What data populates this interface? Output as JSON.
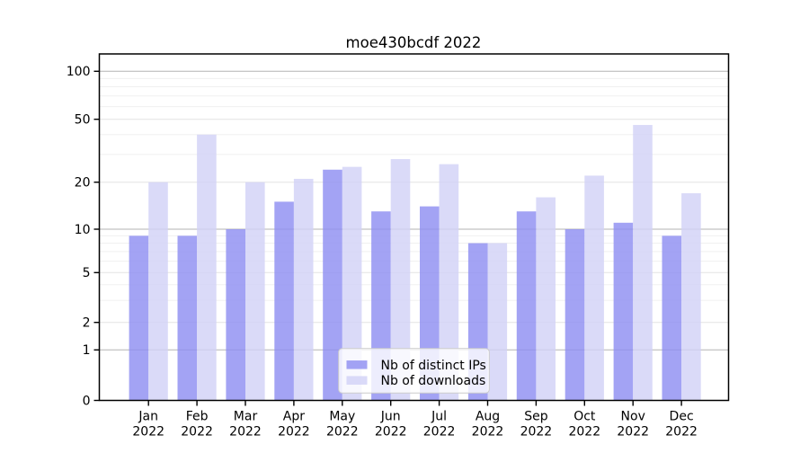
{
  "chart_data": {
    "type": "bar",
    "title": "moe430bcdf 2022",
    "categories": [
      "Jan",
      "Feb",
      "Mar",
      "Apr",
      "May",
      "Jun",
      "Jul",
      "Aug",
      "Sep",
      "Oct",
      "Nov",
      "Dec"
    ],
    "year_label": "2022",
    "series": [
      {
        "name": "Nb of distinct IPs",
        "color": "#8f8ff1",
        "values": [
          9,
          9,
          10,
          15,
          24,
          13,
          14,
          8,
          13,
          10,
          11,
          9
        ]
      },
      {
        "name": "Nb of downloads",
        "color": "#d2d2f7",
        "values": [
          20,
          40,
          20,
          21,
          25,
          28,
          26,
          8,
          16,
          22,
          46,
          17
        ]
      }
    ],
    "y_axis": {
      "scale": "log-like",
      "ticks": [
        100,
        50,
        20,
        10,
        5,
        2,
        1,
        0
      ],
      "range": [
        0,
        120
      ]
    },
    "x_axis": {
      "tick_line1": [
        "Jan",
        "Feb",
        "Mar",
        "Apr",
        "May",
        "Jun",
        "Jul",
        "Aug",
        "Sep",
        "Oct",
        "Nov",
        "Dec"
      ],
      "tick_line2": "2022"
    },
    "legend": {
      "position": "lower-center",
      "labels": [
        "Nb of distinct IPs",
        "Nb of downloads"
      ]
    },
    "grid": true,
    "colors": {
      "decade_gridline": "#b3b3b3",
      "mid_gridline": "#e3e3e3",
      "minor_gridline": "#f0f0f0",
      "spine": "#000000",
      "legend_border": "#cccccc",
      "legend_fill": "#ffffff"
    }
  }
}
